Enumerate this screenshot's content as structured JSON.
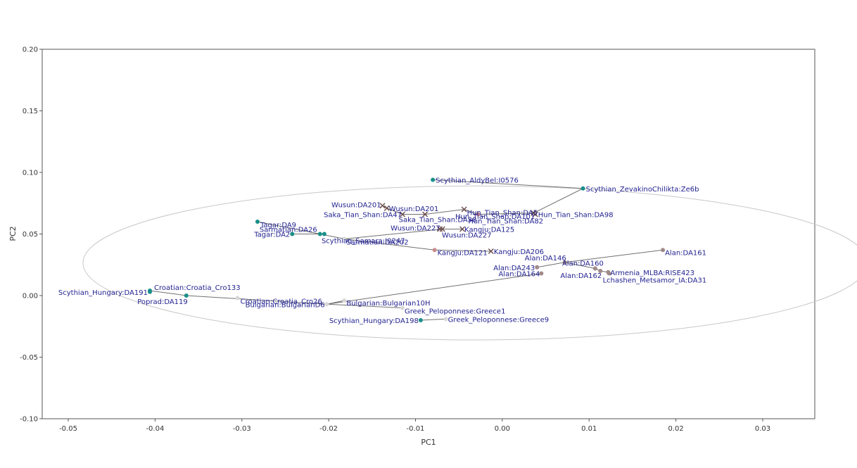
{
  "chart_data": {
    "type": "scatter",
    "title": "",
    "xlabel": "PC1",
    "ylabel": "PC2",
    "xlim": [
      -0.053,
      0.036
    ],
    "ylim": [
      -0.1,
      0.2
    ],
    "x_ticks": [
      -0.05,
      -0.04,
      -0.03,
      -0.02,
      -0.01,
      0.0,
      0.01,
      0.02,
      0.03
    ],
    "x_tick_labels": [
      "-0.05",
      "-0.04",
      "-0.03",
      "-0.02",
      "-0.01",
      "0.00",
      "0.01",
      "0.02",
      "0.03"
    ],
    "y_ticks": [
      -0.1,
      -0.05,
      0.0,
      0.05,
      0.1,
      0.15,
      0.2
    ],
    "y_tick_labels": [
      "-0.10",
      "-0.05",
      "0.00",
      "0.05",
      "0.10",
      "0.15",
      "0.20"
    ],
    "grid": false,
    "legend": "none",
    "ellipse": {
      "cx": -0.0031,
      "cy": 0.0265,
      "rx": 0.0452,
      "ry": 0.0625
    },
    "colors": {
      "teal": "#1a8f8a",
      "pink": "#c98c8c",
      "brown": "#a08a88",
      "cross": "#6a4a4a",
      "white": "#d8d8d8",
      "line": "#707070",
      "ellipse": "#c8c8c8",
      "label": "#1f1f8f"
    },
    "points": [
      {
        "id": "aldybel",
        "label": "Scythian_AldyBel:I0576",
        "x": -0.008,
        "y": 0.094,
        "marker": "teal",
        "anchor": "start",
        "dx": 4,
        "dy": 4
      },
      {
        "id": "zevakino",
        "label": "Scythian_ZevakinoChilikta:Ze6b",
        "x": 0.0093,
        "y": 0.087,
        "marker": "teal",
        "anchor": "start",
        "dx": 4,
        "dy": 4
      },
      {
        "id": "wusun201a",
        "label": "Wusun:DA201",
        "x": -0.0138,
        "y": 0.073,
        "marker": "cross",
        "anchor": "end",
        "dx": -2,
        "dy": 2
      },
      {
        "id": "wusun201b",
        "label": "Wusun:DA201",
        "x": -0.0133,
        "y": 0.071,
        "marker": "cross",
        "anchor": "start",
        "dx": 3,
        "dy": 4
      },
      {
        "id": "saka47",
        "label": "Saka_Tian_Shan:DA47",
        "x": -0.0115,
        "y": 0.066,
        "marker": "cross",
        "anchor": "end",
        "dx": -1,
        "dy": 4
      },
      {
        "id": "sakatianshan",
        "label": "Saka_Tian_Shan:DA38",
        "x": -0.0089,
        "y": 0.066,
        "marker": "cross",
        "anchor": "middle",
        "dx": 18,
        "dy": 11
      },
      {
        "id": "hun",
        "label": "Hun_Tian_Shan:DA5",
        "x": -0.0044,
        "y": 0.07,
        "marker": "cross",
        "anchor": "start",
        "dx": 4,
        "dy": 8
      },
      {
        "id": "hun82",
        "label": "Hun_Tian_Shan:DA82",
        "x": -0.0028,
        "y": 0.066,
        "marker": "pink",
        "anchor": "start",
        "dx": -14,
        "dy": 13
      },
      {
        "id": "hun101",
        "label": "Hun_Tian_Shan:DA101",
        "x": 0.0036,
        "y": 0.067,
        "marker": "cross",
        "anchor": "end",
        "dx": 2,
        "dy": 8
      },
      {
        "id": "hun98",
        "label": "Hun_Tian_Shan:DA98",
        "x": 0.0038,
        "y": 0.066,
        "marker": "cross",
        "anchor": "start",
        "dx": 4,
        "dy": 4
      },
      {
        "id": "wusun227a",
        "label": "Wusun:DA227",
        "x": -0.0069,
        "y": 0.054,
        "marker": "cross",
        "anchor": "end",
        "dx": -3,
        "dy": 2
      },
      {
        "id": "wusun227b",
        "label": "Wusun:DA227",
        "x": -0.0072,
        "y": 0.054,
        "marker": "cross",
        "anchor": "start",
        "dx": 3,
        "dy": 12
      },
      {
        "id": "kangju125",
        "label": "Kangju:DA125",
        "x": -0.0046,
        "y": 0.054,
        "marker": "cross",
        "anchor": "start",
        "dx": 3,
        "dy": 4
      },
      {
        "id": "tagar9",
        "label": "Tagar:DA9",
        "x": -0.0282,
        "y": 0.06,
        "marker": "teal",
        "anchor": "start",
        "dx": 4,
        "dy": 8
      },
      {
        "id": "tagar2",
        "label": "Tagar:DA2",
        "x": -0.0242,
        "y": 0.05,
        "marker": "teal",
        "anchor": "end",
        "dx": -3,
        "dy": 4
      },
      {
        "id": "sarmatian26",
        "label": "Sarmatian:DA26",
        "x": -0.021,
        "y": 0.05,
        "marker": "teal",
        "anchor": "end",
        "dx": -4,
        "dy": -3
      },
      {
        "id": "scythsamara",
        "label": "Scythian_Samara:I0247",
        "x": -0.0205,
        "y": 0.05,
        "marker": "teal",
        "anchor": "start",
        "dx": -4,
        "dy": 13
      },
      {
        "id": "sarmatian202",
        "label": "Sarmatian:DA202",
        "x": -0.0182,
        "y": 0.046,
        "marker": "white",
        "anchor": "start",
        "dx": 3,
        "dy": 8
      },
      {
        "id": "kangju121",
        "label": "Kangju:DA121",
        "x": -0.0078,
        "y": 0.037,
        "marker": "pink",
        "anchor": "start",
        "dx": 4,
        "dy": 7
      },
      {
        "id": "kangju206",
        "label": "Kangju:DA206",
        "x": -0.0013,
        "y": 0.036,
        "marker": "cross",
        "anchor": "start",
        "dx": 4,
        "dy": 4
      },
      {
        "id": "alan161",
        "label": "Alan:DA161",
        "x": 0.0185,
        "y": 0.037,
        "marker": "brown",
        "anchor": "start",
        "dx": 3,
        "dy": 7
      },
      {
        "id": "alan146",
        "label": "Alan:DA146",
        "x": 0.0072,
        "y": 0.027,
        "marker": "brown",
        "anchor": "end",
        "dx": 2,
        "dy": -3
      },
      {
        "id": "alan160",
        "label": "Alan:DA160",
        "x": 0.0107,
        "y": 0.022,
        "marker": "brown",
        "anchor": "end",
        "dx": 12,
        "dy": -4
      },
      {
        "id": "alan243",
        "label": "Alan:DA243",
        "x": 0.004,
        "y": 0.023,
        "marker": "brown",
        "anchor": "end",
        "dx": -3,
        "dy": 4
      },
      {
        "id": "alan164",
        "label": "Alan:DA164",
        "x": 0.0045,
        "y": 0.018,
        "marker": "brown",
        "anchor": "end",
        "dx": -2,
        "dy": 4
      },
      {
        "id": "alan162",
        "label": "Alan:DA162",
        "x": 0.0113,
        "y": 0.02,
        "marker": "brown",
        "anchor": "end",
        "dx": 2,
        "dy": 10
      },
      {
        "id": "armenia",
        "label": "Armenia_MLBA:RISE423",
        "x": 0.0122,
        "y": 0.019,
        "marker": "brown",
        "anchor": "start",
        "dx": 3,
        "dy": 4
      },
      {
        "id": "lchashen",
        "label": "Lchashen_Metsamor_IA:DA31",
        "x": 0.0123,
        "y": 0.018,
        "marker": "brown",
        "anchor": "start",
        "dx": -9,
        "dy": 13
      },
      {
        "id": "croatia133",
        "label": "Croatian:Croatia_Cro133",
        "x": -0.0406,
        "y": 0.004,
        "marker": "teal",
        "anchor": "start",
        "dx": 6,
        "dy": -1
      },
      {
        "id": "hungary191",
        "label": "Scythian_Hungary:DA191",
        "x": -0.0406,
        "y": 0.003,
        "marker": "teal",
        "anchor": "end",
        "dx": -3,
        "dy": 4
      },
      {
        "id": "poprad",
        "label": "Poprad:DA119",
        "x": -0.0364,
        "y": 0.0,
        "marker": "teal",
        "anchor": "end",
        "dx": 2,
        "dy": 12
      },
      {
        "id": "croatia26",
        "label": "Croatian:Croatia_Cro26",
        "x": -0.0305,
        "y": -0.002,
        "marker": "white",
        "anchor": "start",
        "dx": 4,
        "dy": 8
      },
      {
        "id": "bulgarian10h",
        "label": "Bulgarian:Bulgarian10H",
        "x": -0.0182,
        "y": -0.004,
        "marker": "white",
        "anchor": "start",
        "dx": 3,
        "dy": 7
      },
      {
        "id": "bulgarian6",
        "label": "Bulgarian:BulgarianD6",
        "x": -0.0202,
        "y": -0.007,
        "marker": "white",
        "anchor": "end",
        "dx": -3,
        "dy": 4
      },
      {
        "id": "greece1",
        "label": "Greek_Peloponnese:Greece1",
        "x": -0.0115,
        "y": -0.01,
        "marker": "white",
        "anchor": "start",
        "dx": 3,
        "dy": 8
      },
      {
        "id": "hungary198",
        "label": "Scythian_Hungary:DA198",
        "x": -0.0094,
        "y": -0.02,
        "marker": "teal",
        "anchor": "end",
        "dx": -3,
        "dy": 4
      },
      {
        "id": "greece9",
        "label": "Greek_Peloponnese:Greece9",
        "x": -0.0065,
        "y": -0.019,
        "marker": "white",
        "anchor": "start",
        "dx": 3,
        "dy": 4
      }
    ],
    "lines": [
      [
        "aldybel",
        "zevakino"
      ],
      [
        "zevakino",
        "hun101"
      ],
      [
        "wusun201a",
        "wusun201b"
      ],
      [
        "wusun201b",
        "saka47"
      ],
      [
        "saka47",
        "sakatianshan"
      ],
      [
        "sakatianshan",
        "hun"
      ],
      [
        "hun",
        "hun82"
      ],
      [
        "hun82",
        "hun101"
      ],
      [
        "wusun227a",
        "kangju125"
      ],
      [
        "wusun227a",
        "sarmatian202"
      ],
      [
        "tagar9",
        "sarmatian26"
      ],
      [
        "tagar2",
        "sarmatian26"
      ],
      [
        "sarmatian26",
        "sarmatian202"
      ],
      [
        "sarmatian202",
        "kangju121"
      ],
      [
        "kangju121",
        "kangju206"
      ],
      [
        "alan146",
        "alan161"
      ],
      [
        "alan146",
        "alan243"
      ],
      [
        "alan146",
        "alan160"
      ],
      [
        "alan160",
        "alan162"
      ],
      [
        "alan162",
        "armenia"
      ],
      [
        "alan164",
        "bulgarian6"
      ],
      [
        "croatia133",
        "poprad"
      ],
      [
        "poprad",
        "bulgarian6"
      ],
      [
        "bulgarian6",
        "bulgarian10h"
      ],
      [
        "bulgarian6",
        "greece1"
      ],
      [
        "hungary198",
        "greece9"
      ]
    ]
  }
}
